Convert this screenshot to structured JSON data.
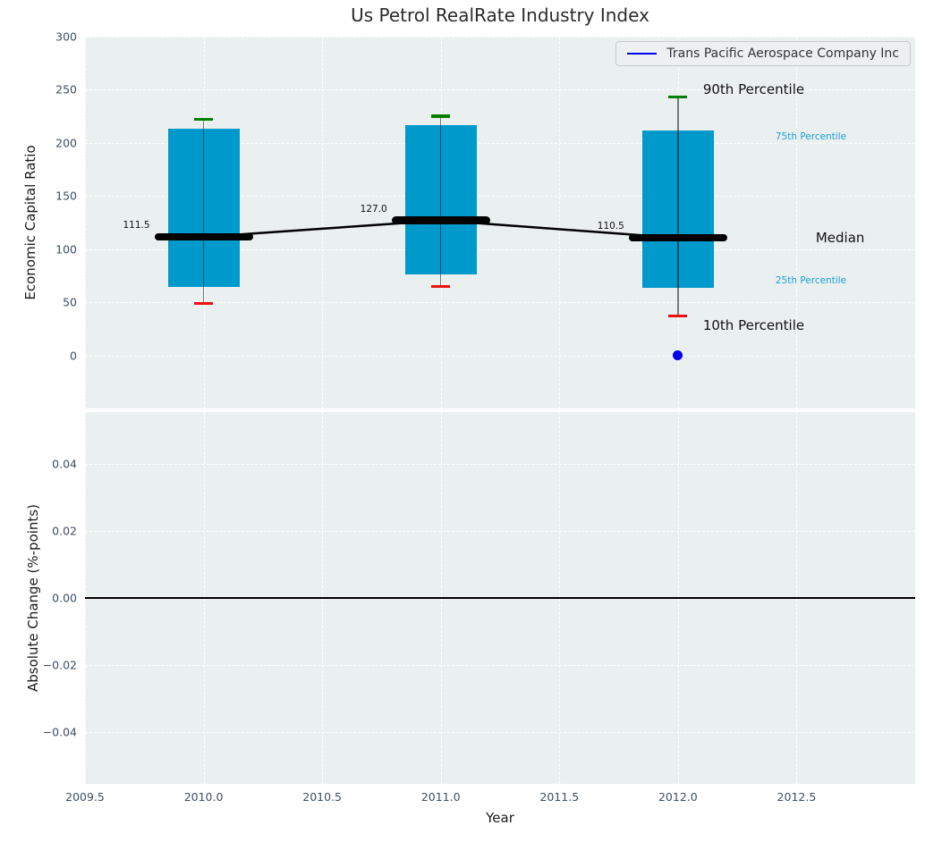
{
  "figure": {
    "title": "Us Petrol RealRate Industry Index",
    "xlabel": "Year"
  },
  "legend": {
    "label": "Trans Pacific Aerospace Company Inc",
    "line_color": "#0000ee",
    "position": "upper right"
  },
  "colors": {
    "axes_bg": "#eaeff0",
    "grid": "#ffffff",
    "tick_label": "#3c4f63",
    "box_fill": "#0099cc",
    "p90_cap": "#008000",
    "p10_cap": "#ee1111",
    "median_line": "#000000",
    "company_point": "#0000ee",
    "small_percentile_label": "#1b9fd4"
  },
  "chart_data": [
    {
      "type": "box-timeseries",
      "title": "Us Petrol RealRate Industry Index",
      "xlabel": "Year",
      "ylabel": "Economic Capital Ratio",
      "xlim": [
        2009.5,
        2013.0
      ],
      "ylim": [
        -50,
        300
      ],
      "grid": "white-dashed",
      "xtick_values": [
        2009.5,
        2010.0,
        2010.5,
        2011.0,
        2011.5,
        2012.0,
        2012.5
      ],
      "xtick_labels": [
        "2009.5",
        "2010.0",
        "2010.5",
        "2011.0",
        "2011.5",
        "2012.0",
        "2012.5"
      ],
      "ytick_values": [
        300,
        250,
        200,
        150,
        100,
        50,
        0
      ],
      "ytick_labels": [
        "300",
        "250",
        "200",
        "150",
        "100",
        "50",
        "0"
      ],
      "boxes": [
        {
          "year": 2010,
          "p10": 49,
          "p25": 64,
          "median": 111.5,
          "p75": 213,
          "p90": 222,
          "median_label": "111.5"
        },
        {
          "year": 2011,
          "p10": 65,
          "p25": 76,
          "median": 127.0,
          "p75": 217,
          "p90": 225,
          "median_label": "127.0"
        },
        {
          "year": 2012,
          "p10": 37,
          "p25": 64,
          "median": 110.5,
          "p75": 212,
          "p90": 243,
          "median_label": "110.5"
        }
      ],
      "median_trend": {
        "x": [
          2010,
          2011,
          2012
        ],
        "y": [
          111.5,
          127.0,
          110.5
        ]
      },
      "company_point": {
        "x": 2012,
        "y": 0,
        "series": "Trans Pacific Aerospace Company Inc"
      },
      "percentile_labels": {
        "p90": "90th Percentile",
        "p75": "75th Percentile",
        "median": "Median",
        "p25": "25th Percentile",
        "p10": "10th Percentile"
      },
      "legend_entries": [
        "Trans Pacific Aerospace Company Inc"
      ],
      "legend_position": "upper right"
    },
    {
      "type": "line",
      "ylabel": "Absolute Change (%-points)",
      "xlabel": "Year",
      "xlim": [
        2009.5,
        2013.0
      ],
      "ylim": [
        -0.0555,
        0.0555
      ],
      "grid": "white-dashed",
      "ytick_values": [
        0.04,
        0.02,
        0,
        -0.02,
        -0.04
      ],
      "ytick_labels": [
        "0.04",
        "0.02",
        "0.00",
        "−0.02",
        "−0.04"
      ],
      "xtick_values": [
        2009.5,
        2010.0,
        2010.5,
        2011.0,
        2011.5,
        2012.0,
        2012.5
      ],
      "xtick_labels": [
        "2009.5",
        "2010.0",
        "2010.5",
        "2011.0",
        "2011.5",
        "2012.0",
        "2012.5"
      ],
      "zero_line_y": 0
    }
  ]
}
